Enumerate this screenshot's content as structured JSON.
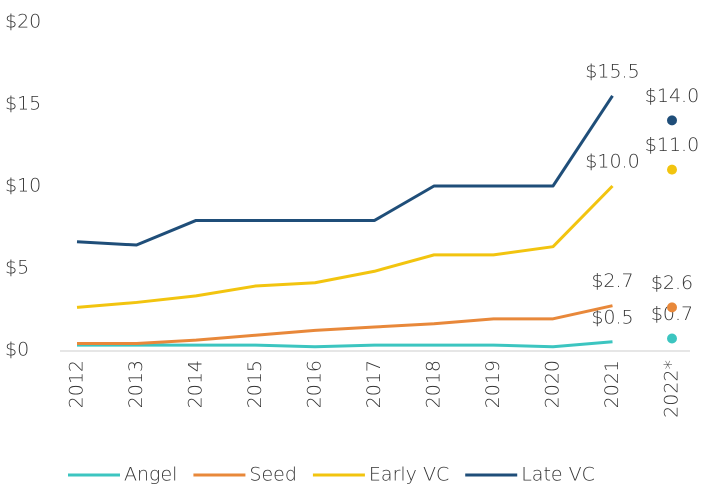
{
  "chart_data": {
    "type": "line",
    "categories": [
      "2012",
      "2013",
      "2014",
      "2015",
      "2016",
      "2017",
      "2018",
      "2019",
      "2020",
      "2021",
      "2022*"
    ],
    "ylim": [
      0,
      20
    ],
    "yticks": [
      {
        "value": 0,
        "label": "$0"
      },
      {
        "value": 5,
        "label": "$5"
      },
      {
        "value": 10,
        "label": "$10"
      },
      {
        "value": 15,
        "label": "$15"
      },
      {
        "value": 20,
        "label": "$20"
      }
    ],
    "grid": false,
    "last_point_separate": true,
    "legend": "bottom",
    "series": [
      {
        "name": "Angel",
        "color": "#3cc5c0",
        "values": [
          0.3,
          0.3,
          0.3,
          0.3,
          0.2,
          0.3,
          0.3,
          0.3,
          0.2,
          0.5,
          0.7
        ],
        "value_labels": [
          null,
          null,
          null,
          null,
          null,
          null,
          null,
          null,
          null,
          "$0.5",
          "$0.7"
        ]
      },
      {
        "name": "Seed",
        "color": "#e8883a",
        "values": [
          0.4,
          0.4,
          0.6,
          0.9,
          1.2,
          1.4,
          1.6,
          1.9,
          1.9,
          2.7,
          2.6
        ],
        "value_labels": [
          null,
          null,
          null,
          null,
          null,
          null,
          null,
          null,
          null,
          "$2.7",
          "$2.6"
        ]
      },
      {
        "name": "Early VC",
        "color": "#f2c40f",
        "values": [
          2.6,
          2.9,
          3.3,
          3.9,
          4.1,
          4.8,
          5.8,
          5.8,
          6.3,
          10.0,
          11.0
        ],
        "value_labels": [
          null,
          null,
          null,
          null,
          null,
          null,
          null,
          null,
          null,
          "$10.0",
          "$11.0"
        ]
      },
      {
        "name": "Late VC",
        "color": "#1f4e79",
        "values": [
          6.6,
          6.4,
          7.9,
          7.9,
          7.9,
          7.9,
          10.0,
          10.0,
          10.0,
          15.5,
          14.0
        ],
        "value_labels": [
          null,
          null,
          null,
          null,
          null,
          null,
          null,
          null,
          null,
          "$15.5",
          "$14.0"
        ]
      }
    ]
  }
}
